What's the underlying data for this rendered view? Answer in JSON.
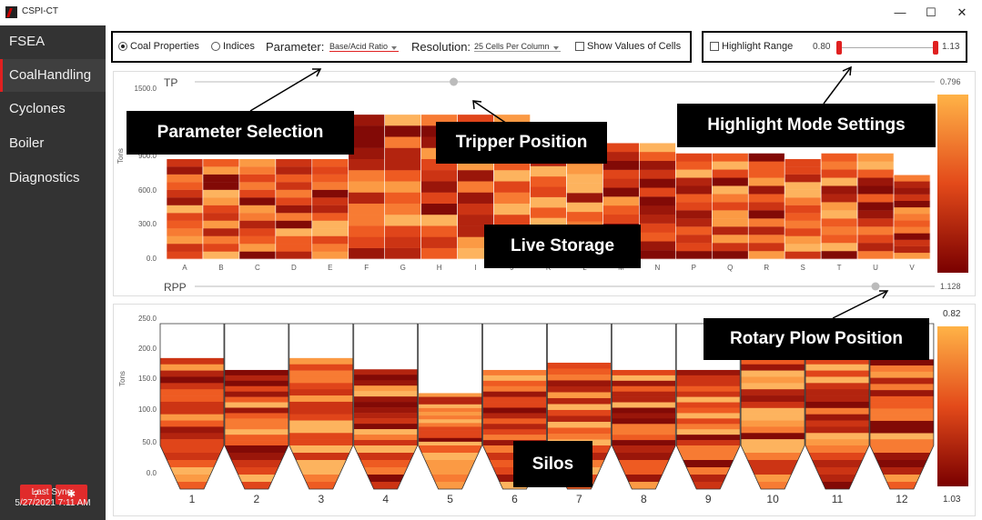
{
  "window": {
    "title": "CSPI-CT",
    "minimize_icon": "—",
    "maximize_icon": "☐",
    "close_icon": "✕"
  },
  "sidebar": {
    "items": [
      {
        "label": "FSEA"
      },
      {
        "label": "CoalHandling"
      },
      {
        "label": "Cyclones"
      },
      {
        "label": "Boiler"
      },
      {
        "label": "Diagnostics"
      }
    ],
    "help_label": "?",
    "settings_icon": "gear-icon",
    "settings_glyph": "✱",
    "last_sync_label": "Last Sync:",
    "last_sync_value": "5/27/2021 7:11 AM"
  },
  "controls": {
    "coal_properties_label": "Coal Properties",
    "indices_label": "Indices",
    "parameter_label": "Parameter:",
    "parameter_value": "Base/Acid Ratio",
    "resolution_label": "Resolution:",
    "resolution_value": "25 Cells Per Column",
    "show_values_label": "Show Values of Cells",
    "highlight_range_label": "Highlight Range",
    "range_min": "0.80",
    "range_max": "1.13"
  },
  "colors": {
    "accent": "#e02020",
    "sidebar_bg": "#333333",
    "heat_low": "#ffb347",
    "heat_mid": "#e34a1a",
    "heat_high": "#8b0000"
  },
  "callouts": {
    "parameter_selection": "Parameter Selection",
    "tripper_position": "Tripper Position",
    "highlight_mode": "Highlight Mode Settings",
    "live_storage": "Live Storage",
    "rotary_plow": "Rotary Plow Position",
    "silos": "Silos"
  },
  "live_storage": {
    "tripper_label": "TP",
    "tripper_value": "0.796",
    "tripper_fraction": 0.35,
    "plow_label": "RPP",
    "plow_value": "1.128",
    "plow_fraction": 0.92,
    "ylabel": "Tons",
    "yticks": [
      "1500.0",
      "900.0",
      "600.0",
      "300.0",
      "0.0"
    ],
    "columns": [
      "A",
      "B",
      "C",
      "D",
      "E",
      "F",
      "G",
      "H",
      "I",
      "J",
      "K",
      "L",
      "M",
      "N",
      "P",
      "Q",
      "R",
      "S",
      "T",
      "U",
      "V"
    ],
    "heights": [
      880,
      880,
      880,
      880,
      880,
      1270,
      1270,
      1270,
      1270,
      1270,
      1180,
      1080,
      1020,
      1020,
      930,
      930,
      930,
      880,
      930,
      930,
      740
    ],
    "ymax": 1500
  },
  "silos": {
    "ylabel": "Tons",
    "yticks": [
      "250.0",
      "200.0",
      "150.0",
      "100.0",
      "50.0",
      "0.0"
    ],
    "labels": [
      "1",
      "2",
      "3",
      "4",
      "5",
      "6",
      "7",
      "8",
      "9",
      "10",
      "11",
      "12"
    ],
    "levels": [
      198,
      180,
      198,
      181,
      145,
      180,
      191,
      180,
      180,
      198,
      198,
      196
    ],
    "ymax": 250
  },
  "colorbars": {
    "top_value": "0.82",
    "bottom_value": "1.03"
  }
}
